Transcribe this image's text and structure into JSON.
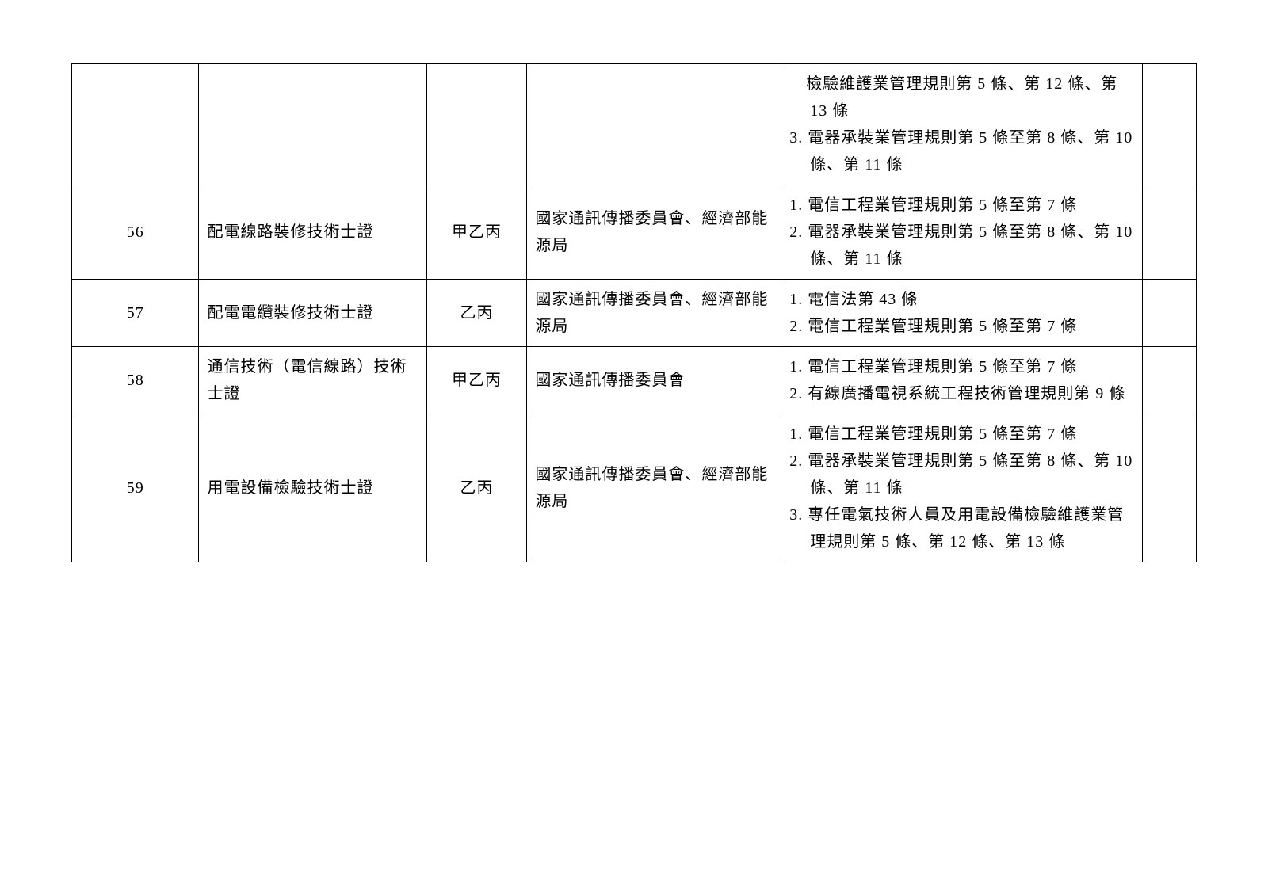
{
  "table": {
    "rows": [
      {
        "num": "",
        "name": "",
        "level": "",
        "authority": "",
        "basis": [
          "　檢驗維護業管理規則第 5 條、第 12 條、第 13 條",
          "3. 電器承裝業管理規則第 5 條至第 8 條、第 10 條、第 11 條"
        ],
        "extra": ""
      },
      {
        "num": "56",
        "name": "配電線路裝修技術士證",
        "level": "甲乙丙",
        "authority": "國家通訊傳播委員會、經濟部能源局",
        "basis": [
          "1. 電信工程業管理規則第 5 條至第 7 條",
          "2. 電器承裝業管理規則第 5 條至第 8 條、第 10 條、第 11 條"
        ],
        "extra": ""
      },
      {
        "num": "57",
        "name": "配電電纜裝修技術士證",
        "level": "乙丙",
        "authority": "國家通訊傳播委員會、經濟部能源局",
        "basis": [
          "1. 電信法第 43 條",
          "2. 電信工程業管理規則第 5 條至第 7 條"
        ],
        "extra": ""
      },
      {
        "num": "58",
        "name": "通信技術（電信線路）技術士證",
        "level": "甲乙丙",
        "authority": "國家通訊傳播委員會",
        "basis": [
          "1. 電信工程業管理規則第 5 條至第 7 條",
          "2. 有線廣播電視系統工程技術管理規則第 9 條"
        ],
        "extra": ""
      },
      {
        "num": "59",
        "name": "用電設備檢驗技術士證",
        "level": "乙丙",
        "authority": "國家通訊傳播委員會、經濟部能源局",
        "basis": [
          "1. 電信工程業管理規則第 5 條至第 7 條",
          "2. 電器承裝業管理規則第 5 條至第 8 條、第 10 條、第 11 條",
          "3. 專任電氣技術人員及用電設備檢驗維護業管理規則第 5 條、第 12 條、第 13 條"
        ],
        "extra": ""
      }
    ]
  },
  "styling": {
    "background_color": "#ffffff",
    "border_color": "#000000",
    "text_color": "#000000",
    "font_size": 20,
    "line_height": 1.7
  }
}
